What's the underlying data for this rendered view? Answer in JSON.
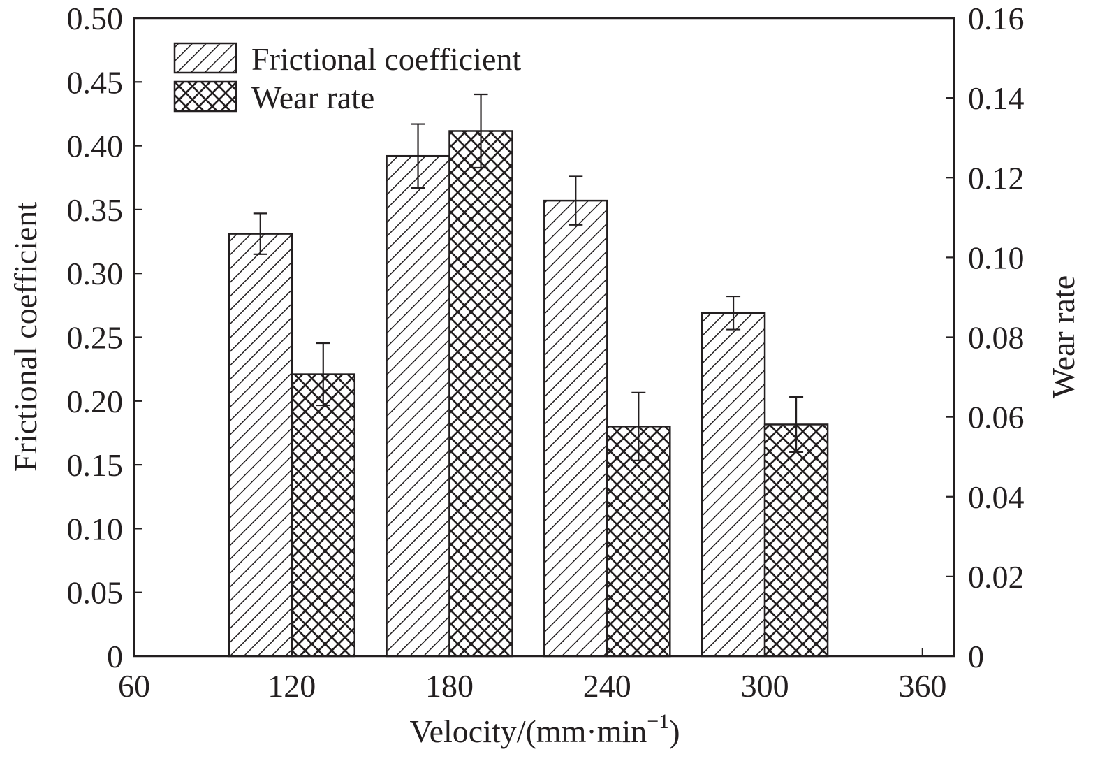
{
  "chart_data": {
    "type": "bar",
    "x": [
      120,
      180,
      240,
      300
    ],
    "xticks": [
      "60",
      "120",
      "180",
      "240",
      "300",
      "360"
    ],
    "xtick_values": [
      60,
      120,
      180,
      240,
      300,
      360
    ],
    "xlim": [
      60,
      372
    ],
    "xlabel": "Velocity/(mm·min",
    "xlabel_sup": "−1",
    "xlabel_close": ")",
    "ylabel_left": "Frictional coefficient",
    "ylabel_right": "Wear rate",
    "ylim_left": [
      0,
      0.5
    ],
    "ylim_right": [
      0,
      0.16
    ],
    "yticks_left": [
      "0",
      "0.05",
      "0.10",
      "0.15",
      "0.20",
      "0.25",
      "0.30",
      "0.35",
      "0.40",
      "0.45",
      "0.50"
    ],
    "ytick_values_left": [
      0,
      0.05,
      0.1,
      0.15,
      0.2,
      0.25,
      0.3,
      0.35,
      0.4,
      0.45,
      0.5
    ],
    "yticks_right": [
      "0",
      "0.02",
      "0.04",
      "0.06",
      "0.08",
      "0.10",
      "0.12",
      "0.14",
      "0.16"
    ],
    "ytick_values_right": [
      0,
      0.02,
      0.04,
      0.06,
      0.08,
      0.1,
      0.12,
      0.14,
      0.16
    ],
    "series": [
      {
        "name": "Frictional coefficient",
        "axis": "left",
        "pattern": "diagonal-hatch",
        "values": [
          0.331,
          0.392,
          0.357,
          0.269
        ],
        "errors": [
          0.016,
          0.025,
          0.019,
          0.013
        ]
      },
      {
        "name": "Wear rate",
        "axis": "right",
        "pattern": "cross-hatch",
        "values": [
          0.0707,
          0.1317,
          0.0576,
          0.0581
        ],
        "errors": [
          0.0078,
          0.0092,
          0.0085,
          0.0069
        ]
      }
    ],
    "legend_position": "top-left",
    "grid": false,
    "colors": {
      "ink": "#231f20",
      "background": "#ffffff"
    }
  }
}
